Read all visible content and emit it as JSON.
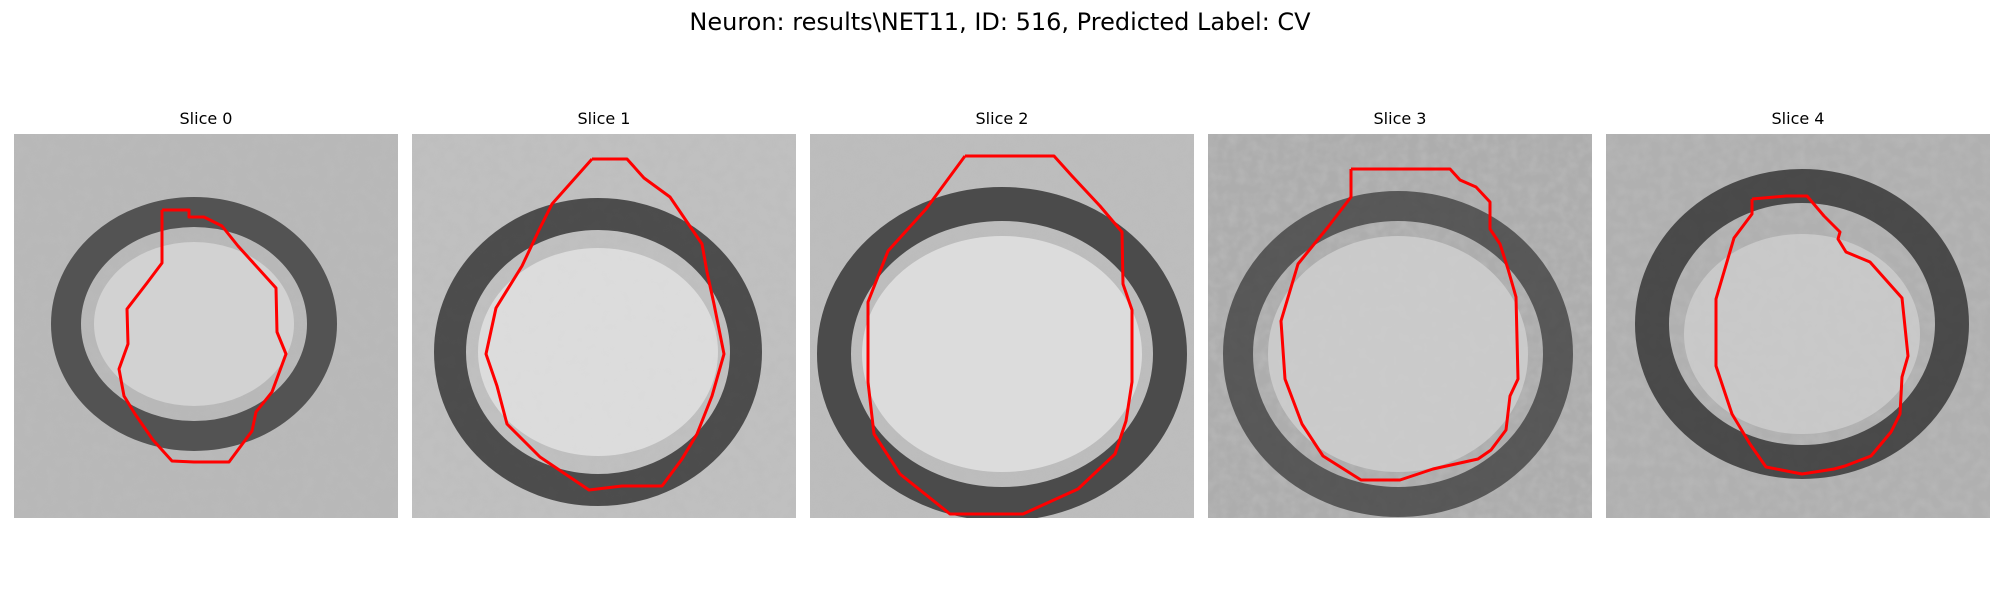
{
  "figure": {
    "title": "Neuron: results\\NET11, ID: 516, Predicted Label: CV"
  },
  "contour_color": "#ff0000",
  "panels": [
    {
      "title": "Slice 0"
    },
    {
      "title": "Slice 1"
    },
    {
      "title": "Slice 2"
    },
    {
      "title": "Slice 3"
    },
    {
      "title": "Slice 4"
    }
  ]
}
